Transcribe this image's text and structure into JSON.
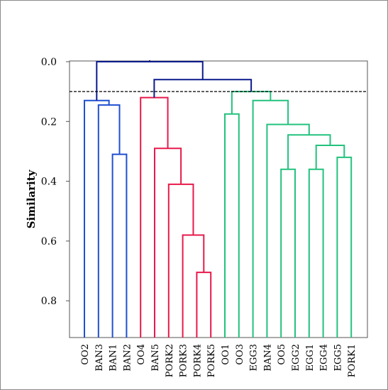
{
  "chart_data": {
    "type": "dendrogram",
    "ylabel": "Similarity",
    "ylim": [
      0.0,
      0.92
    ],
    "yticks": [
      "0.0",
      "0.2",
      "0.4",
      "0.6",
      "0.8"
    ],
    "ytick_values": [
      0.0,
      0.2,
      0.4,
      0.6,
      0.8
    ],
    "grid": false,
    "cut_line": 0.1,
    "leaves": [
      "OO2",
      "BAN3",
      "BAN1",
      "BAN2",
      "OO4",
      "BAN5",
      "PORK2",
      "PORK3",
      "PORK4",
      "PORK5",
      "OO1",
      "OO3",
      "EGG3",
      "BAN4",
      "OO5",
      "EGG2",
      "EGG1",
      "EGG4",
      "EGG5",
      "PORK1"
    ],
    "clusters": [
      {
        "name": "blue",
        "color": "#1f4fd1"
      },
      {
        "name": "red",
        "color": "#e8194b"
      },
      {
        "name": "green",
        "color": "#22c27d"
      }
    ],
    "root_color": "#0a1a8c",
    "merges": [
      {
        "left": "BAN1",
        "right": "BAN2",
        "height": 0.31,
        "color": "blue"
      },
      {
        "left": "BAN3",
        "right": "m0",
        "height": 0.145,
        "color": "blue"
      },
      {
        "left": "OO2",
        "right": "m1",
        "height": 0.13,
        "color": "blue"
      },
      {
        "left": "PORK4",
        "right": "PORK5",
        "height": 0.705,
        "color": "red"
      },
      {
        "left": "PORK3",
        "right": "m3",
        "height": 0.58,
        "color": "red"
      },
      {
        "left": "PORK2",
        "right": "m4",
        "height": 0.41,
        "color": "red"
      },
      {
        "left": "BAN5",
        "right": "m5",
        "height": 0.29,
        "color": "red"
      },
      {
        "left": "OO4",
        "right": "m6",
        "height": 0.12,
        "color": "red"
      },
      {
        "left": "OO1",
        "right": "OO3",
        "height": 0.175,
        "color": "green"
      },
      {
        "left": "OO5",
        "right": "EGG2",
        "height": 0.36,
        "color": "green"
      },
      {
        "left": "EGG1",
        "right": "EGG4",
        "height": 0.36,
        "color": "green"
      },
      {
        "left": "EGG5",
        "right": "PORK1",
        "height": 0.32,
        "color": "green"
      },
      {
        "left": "m10",
        "right": "m11",
        "height": 0.28,
        "color": "green"
      },
      {
        "left": "m9",
        "right": "m12",
        "height": 0.245,
        "color": "green"
      },
      {
        "left": "BAN4",
        "right": "m13",
        "height": 0.21,
        "color": "green"
      },
      {
        "left": "EGG3",
        "right": "m14",
        "height": 0.13,
        "color": "green"
      },
      {
        "left": "m8",
        "right": "m15",
        "height": 0.1,
        "color": "green"
      },
      {
        "left": "m7",
        "right": "m16",
        "height": 0.06,
        "color": "root"
      },
      {
        "left": "m2",
        "right": "m17",
        "height": 0.0,
        "color": "root"
      }
    ]
  }
}
